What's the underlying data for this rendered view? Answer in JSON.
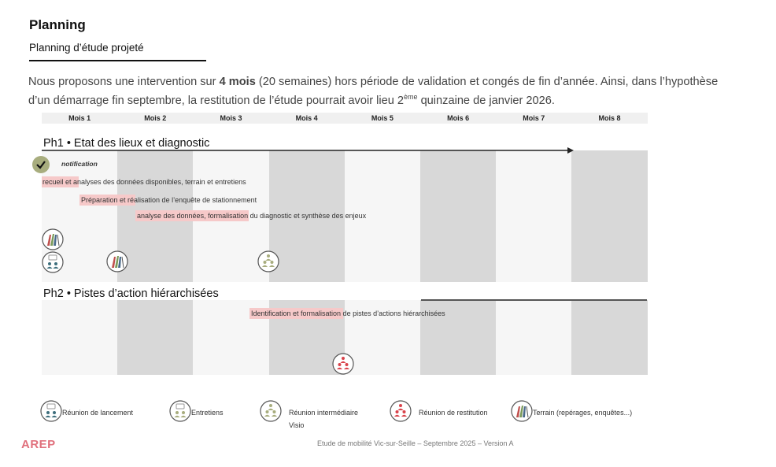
{
  "title": "Planning",
  "subtitle": "Planning d’étude projeté",
  "intro": {
    "p1": "Nous proposons une intervention sur ",
    "bold": "4 mois",
    "p2": " (20 semaines) hors période de validation et congés de fin d’année. Ainsi, dans l’hypothèse d’un démarrage fin septembre, la restitution de l’étude pourrait avoir lieu 2",
    "sup": "ème",
    "p3": " quinzaine de janvier 2026."
  },
  "months": [
    "Mois 1",
    "Mois 2",
    "Mois 3",
    "Mois 4",
    "Mois 5",
    "Mois 6",
    "Mois 7",
    "Mois 8"
  ],
  "phase1": {
    "title": "Ph1 • Etat des lieux et diagnostic",
    "notification": "notification",
    "tasks": [
      "recueil et analyses des données disponibles, terrain et entretiens",
      "Préparation et réalisation de l’enquête de stationnement",
      "analyse des données, formalisation du diagnostic et synthèse des enjeux"
    ]
  },
  "phase2": {
    "title": "Ph2 • Pistes d’action hiérarchisées",
    "tasks": [
      "Identification et formalisation de pistes d’actions hiérarchisées"
    ]
  },
  "legend": [
    {
      "icon": "lancement",
      "label": "Réunion de lancement"
    },
    {
      "icon": "entretiens",
      "label": "Entretiens"
    },
    {
      "icon": "intermediaire",
      "label": "Réunion intermédiaire",
      "sub": "Visio"
    },
    {
      "icon": "restitution",
      "label": "Réunion de restitution"
    },
    {
      "icon": "terrain",
      "label": "Terrain (repérages, enquêtes...)"
    }
  ],
  "logo": "AREP",
  "footer": "Etude de mobilité Vic-sur-Seille – Septembre 2025 – Version A",
  "colors": {
    "highlight": "#f6c9c9",
    "lancement": "#3d6e7c",
    "olive": "#a8ad7e",
    "restitution": "#d9434b",
    "logo": "#e0707c",
    "check": "#a8ad7e"
  }
}
